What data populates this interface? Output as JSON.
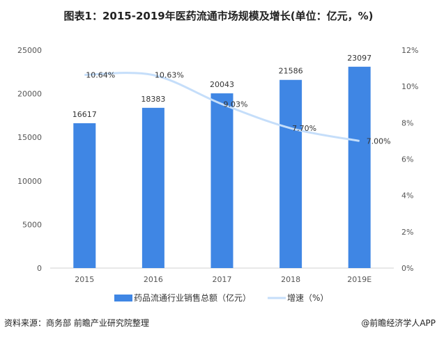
{
  "chart_data": {
    "type": "bar",
    "title": "图表1：2015-2019年医药流通市场规模及增长(单位：亿元，%)",
    "categories": [
      "2015",
      "2016",
      "2017",
      "2018",
      "2019E"
    ],
    "series": [
      {
        "name": "药品流通行业销售总额（亿元）",
        "type": "bar",
        "axis": "left",
        "color": "#3f86e4",
        "values": [
          16617,
          18383,
          20043,
          21586,
          23097
        ],
        "labels": [
          "16617",
          "18383",
          "20043",
          "21586",
          "23097"
        ]
      },
      {
        "name": "增速（%）",
        "type": "line",
        "axis": "right",
        "color": "#c5defa",
        "values": [
          10.64,
          10.63,
          9.03,
          7.7,
          7.0
        ],
        "labels": [
          "10.64%",
          "10.63%",
          "9.03%",
          "7.70%",
          "7.00%"
        ]
      }
    ],
    "ylim": [
      0,
      25000
    ],
    "yticks": [
      "0",
      "5000",
      "10000",
      "15000",
      "20000",
      "25000"
    ],
    "y2lim": [
      0,
      12
    ],
    "y2ticks": [
      "0%",
      "2%",
      "4%",
      "6%",
      "8%",
      "10%",
      "12%"
    ],
    "legend": "bottom",
    "grid": false
  },
  "footer": {
    "source": "资料来源：商务部 前瞻产业研究院整理",
    "app": "@前瞻经济学人APP"
  }
}
